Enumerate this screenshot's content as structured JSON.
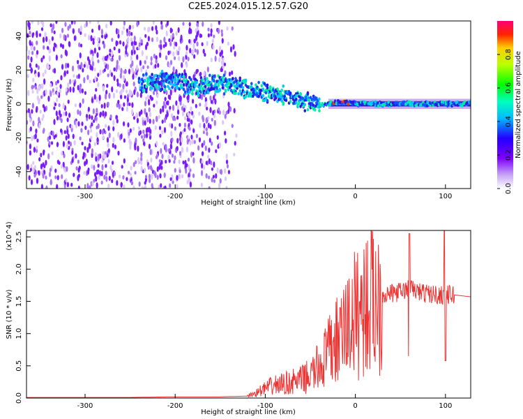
{
  "title": "C2E5.2024.015.12.57.G20",
  "chart_data": [
    {
      "type": "heatmap",
      "xlabel": "Height of straight line (km)",
      "ylabel": "Frequency (Hz)",
      "xlim": [
        -365,
        128
      ],
      "ylim": [
        -50,
        49
      ],
      "xticks": [
        -300,
        -200,
        -100,
        0,
        100
      ],
      "xtick_labels": [
        "-300",
        "-200",
        "-100",
        "0",
        "100"
      ],
      "yticks": [
        -40,
        -20,
        0,
        20,
        40
      ],
      "ytick_labels": [
        "-40",
        "-20",
        "0",
        "20",
        "40"
      ],
      "colorbar": {
        "label": "Normalized spectral amplitude",
        "range": [
          0,
          1
        ],
        "ticks": [
          0,
          0.2,
          0.4,
          0.6,
          0.8
        ],
        "tick_labels": [
          "0.0",
          "0.2",
          "0.4",
          "0.6",
          "0.8"
        ],
        "colormap": "rainbow"
      },
      "ridge": {
        "description_free": true,
        "x": [
          -240,
          -220,
          -210,
          -200,
          -190,
          -180,
          -170,
          -160,
          -150,
          -140,
          -130,
          -120,
          -110,
          -100,
          -90,
          -80,
          -70,
          -60,
          -50,
          -40,
          -30,
          -20,
          -10,
          0,
          20,
          40,
          60,
          80,
          100,
          128
        ],
        "y": [
          12,
          13,
          14,
          14,
          12,
          10,
          11,
          12,
          12,
          11,
          10,
          9,
          8,
          7,
          6,
          5,
          4,
          2,
          1,
          0,
          0,
          1,
          1,
          0,
          0,
          0,
          0,
          0,
          0,
          0
        ]
      }
    },
    {
      "type": "line",
      "xlabel": "Height of straight line (km)",
      "ylabel": "SNR (10 * v/v)",
      "y_multiplier_label": "(x10^4)",
      "xlim": [
        -365,
        128
      ],
      "ylim": [
        0,
        2.6
      ],
      "xticks": [
        -300,
        -200,
        -100,
        0,
        100
      ],
      "xtick_labels": [
        "-300",
        "-200",
        "-100",
        "0",
        "100"
      ],
      "yticks": [
        0.0,
        0.5,
        1.0,
        1.5,
        2.0,
        2.5
      ],
      "ytick_labels": [
        "0.0",
        "0.5",
        "1.0",
        "1.5",
        "2.0",
        "2.5"
      ],
      "series": [
        {
          "color": "#ee3333",
          "x": [
            -365,
            -300,
            -250,
            -200,
            -150,
            -120,
            -110,
            -100,
            -90,
            -80,
            -70,
            -60,
            -50,
            -40,
            -30,
            -20,
            -15,
            -10,
            0,
            10,
            20,
            30,
            40,
            50,
            60,
            70,
            80,
            90,
            100,
            110,
            128
          ],
          "y": [
            0.01,
            0.01,
            0.01,
            0.02,
            0.02,
            0.03,
            0.08,
            0.15,
            0.2,
            0.22,
            0.25,
            0.28,
            0.35,
            0.5,
            0.7,
            0.9,
            1.0,
            1.1,
            1.3,
            1.45,
            1.55,
            1.6,
            1.62,
            1.65,
            1.7,
            1.65,
            1.62,
            1.6,
            1.6,
            1.6,
            1.57
          ]
        }
      ]
    }
  ]
}
